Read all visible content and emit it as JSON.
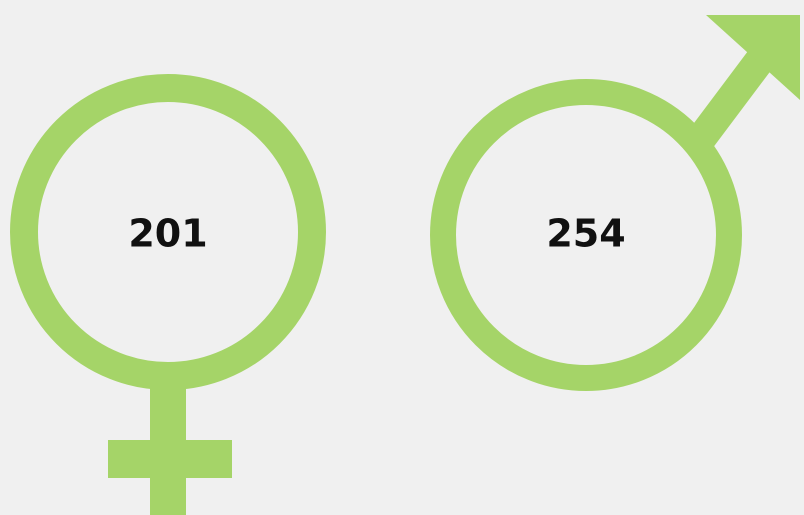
{
  "female": {
    "count": 201
  },
  "male": {
    "count": 254
  }
}
